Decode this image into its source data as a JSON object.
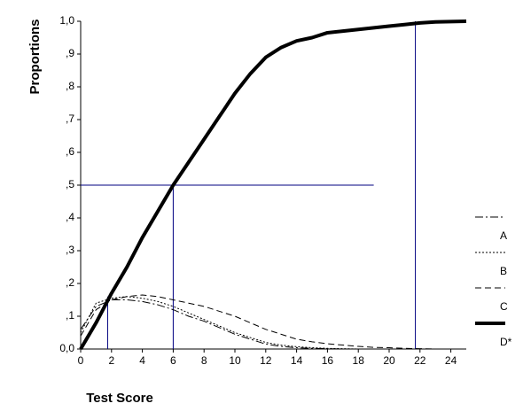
{
  "chart_data": {
    "type": "line",
    "x_label": "Test Score",
    "y_label": "Proportions",
    "x": [
      0,
      1,
      2,
      3,
      4,
      5,
      6,
      7,
      8,
      9,
      10,
      11,
      12,
      13,
      14,
      15,
      16,
      17,
      18,
      19,
      20,
      21,
      22,
      23,
      24,
      25
    ],
    "series": [
      {
        "name": "A",
        "color": "#000000",
        "style": "dashdot",
        "width": 1,
        "values": [
          0.06,
          0.13,
          0.15,
          0.15,
          0.145,
          0.135,
          0.12,
          0.1,
          0.085,
          0.065,
          0.045,
          0.03,
          0.015,
          0.008,
          0.004,
          0.002,
          0.001,
          0,
          0,
          0,
          0,
          0,
          0,
          0,
          0,
          0
        ]
      },
      {
        "name": "B",
        "color": "#000000",
        "style": "dotted",
        "width": 1,
        "values": [
          0.05,
          0.14,
          0.155,
          0.16,
          0.155,
          0.145,
          0.13,
          0.11,
          0.09,
          0.07,
          0.05,
          0.035,
          0.02,
          0.012,
          0.007,
          0.004,
          0.002,
          0.001,
          0,
          0,
          0,
          0,
          0,
          0,
          0,
          0
        ]
      },
      {
        "name": "C",
        "color": "#000000",
        "style": "dashed",
        "width": 1,
        "values": [
          0.04,
          0.12,
          0.15,
          0.16,
          0.165,
          0.16,
          0.15,
          0.14,
          0.13,
          0.115,
          0.1,
          0.08,
          0.06,
          0.045,
          0.03,
          0.022,
          0.016,
          0.012,
          0.008,
          0.005,
          0.004,
          0.002,
          0.001,
          0,
          0,
          0
        ]
      },
      {
        "name": "D*",
        "color": "#000000",
        "style": "solid",
        "width": 4,
        "values": [
          0,
          0.08,
          0.17,
          0.25,
          0.34,
          0.42,
          0.5,
          0.57,
          0.64,
          0.71,
          0.78,
          0.84,
          0.89,
          0.92,
          0.94,
          0.95,
          0.965,
          0.97,
          0.975,
          0.98,
          0.985,
          0.99,
          0.995,
          0.998,
          0.999,
          1.0
        ]
      }
    ],
    "reference_lines": [
      {
        "color": "#000080",
        "x": [
          0,
          19
        ],
        "y": [
          0.5,
          0.5
        ]
      },
      {
        "color": "#000080",
        "x": [
          6,
          6
        ],
        "y": [
          0,
          0.5
        ]
      },
      {
        "color": "#000080",
        "x": [
          1.75,
          1.75
        ],
        "y": [
          0,
          0.16
        ]
      },
      {
        "color": "#000080",
        "x": [
          21.7,
          21.7
        ],
        "y": [
          0,
          1.0
        ]
      }
    ],
    "xlim": [
      0,
      25
    ],
    "ylim": [
      0,
      1
    ],
    "xticks": [
      0,
      2,
      4,
      6,
      8,
      10,
      12,
      14,
      16,
      18,
      20,
      22,
      24
    ],
    "yticks": [
      {
        "value": 0,
        "label": "0,0"
      },
      {
        "value": 0.1,
        "label": ",1"
      },
      {
        "value": 0.2,
        "label": ",2"
      },
      {
        "value": 0.3,
        "label": ",3"
      },
      {
        "value": 0.4,
        "label": ",4"
      },
      {
        "value": 0.5,
        "label": ",5"
      },
      {
        "value": 0.6,
        "label": ",6"
      },
      {
        "value": 0.7,
        "label": ",7"
      },
      {
        "value": 0.8,
        "label": ",8"
      },
      {
        "value": 0.9,
        "label": ",9"
      },
      {
        "value": 1,
        "label": "1,0"
      }
    ],
    "grid": false,
    "legend": "right"
  }
}
